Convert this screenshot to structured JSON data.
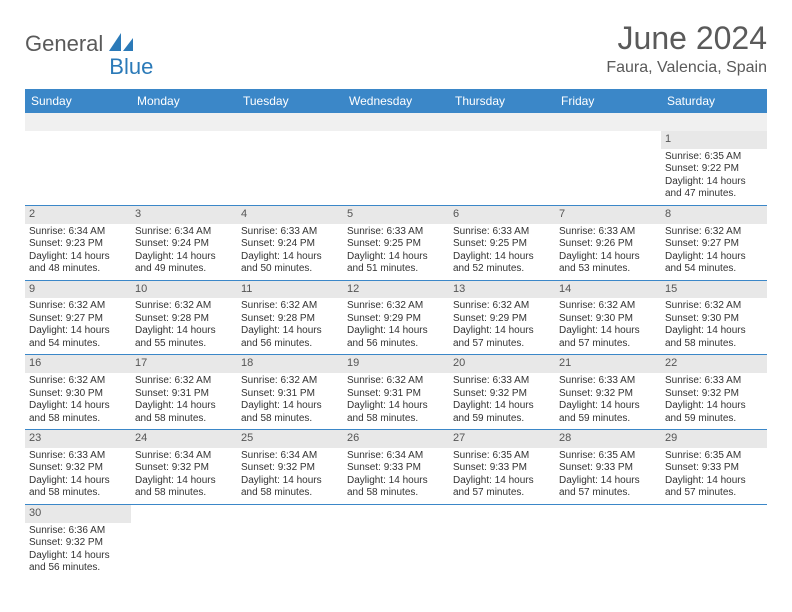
{
  "logo": {
    "text1": "General",
    "text2": "Blue"
  },
  "title": "June 2024",
  "location": "Faura, Valencia, Spain",
  "day_header_bg": "#3b87c8",
  "day_header_fg": "#ffffff",
  "row_separator_color": "#3b87c8",
  "day_number_bg": "#e8e8e8",
  "page_bg": "#ffffff",
  "text_color": "#333333",
  "day_names": [
    "Sunday",
    "Monday",
    "Tuesday",
    "Wednesday",
    "Thursday",
    "Friday",
    "Saturday"
  ],
  "weeks": [
    [
      null,
      null,
      null,
      null,
      null,
      null,
      {
        "n": "1",
        "sunrise": "6:35 AM",
        "sunset": "9:22 PM",
        "dl1": "14 hours",
        "dl2": "and 47 minutes."
      }
    ],
    [
      {
        "n": "2",
        "sunrise": "6:34 AM",
        "sunset": "9:23 PM",
        "dl1": "14 hours",
        "dl2": "and 48 minutes."
      },
      {
        "n": "3",
        "sunrise": "6:34 AM",
        "sunset": "9:24 PM",
        "dl1": "14 hours",
        "dl2": "and 49 minutes."
      },
      {
        "n": "4",
        "sunrise": "6:33 AM",
        "sunset": "9:24 PM",
        "dl1": "14 hours",
        "dl2": "and 50 minutes."
      },
      {
        "n": "5",
        "sunrise": "6:33 AM",
        "sunset": "9:25 PM",
        "dl1": "14 hours",
        "dl2": "and 51 minutes."
      },
      {
        "n": "6",
        "sunrise": "6:33 AM",
        "sunset": "9:25 PM",
        "dl1": "14 hours",
        "dl2": "and 52 minutes."
      },
      {
        "n": "7",
        "sunrise": "6:33 AM",
        "sunset": "9:26 PM",
        "dl1": "14 hours",
        "dl2": "and 53 minutes."
      },
      {
        "n": "8",
        "sunrise": "6:32 AM",
        "sunset": "9:27 PM",
        "dl1": "14 hours",
        "dl2": "and 54 minutes."
      }
    ],
    [
      {
        "n": "9",
        "sunrise": "6:32 AM",
        "sunset": "9:27 PM",
        "dl1": "14 hours",
        "dl2": "and 54 minutes."
      },
      {
        "n": "10",
        "sunrise": "6:32 AM",
        "sunset": "9:28 PM",
        "dl1": "14 hours",
        "dl2": "and 55 minutes."
      },
      {
        "n": "11",
        "sunrise": "6:32 AM",
        "sunset": "9:28 PM",
        "dl1": "14 hours",
        "dl2": "and 56 minutes."
      },
      {
        "n": "12",
        "sunrise": "6:32 AM",
        "sunset": "9:29 PM",
        "dl1": "14 hours",
        "dl2": "and 56 minutes."
      },
      {
        "n": "13",
        "sunrise": "6:32 AM",
        "sunset": "9:29 PM",
        "dl1": "14 hours",
        "dl2": "and 57 minutes."
      },
      {
        "n": "14",
        "sunrise": "6:32 AM",
        "sunset": "9:30 PM",
        "dl1": "14 hours",
        "dl2": "and 57 minutes."
      },
      {
        "n": "15",
        "sunrise": "6:32 AM",
        "sunset": "9:30 PM",
        "dl1": "14 hours",
        "dl2": "and 58 minutes."
      }
    ],
    [
      {
        "n": "16",
        "sunrise": "6:32 AM",
        "sunset": "9:30 PM",
        "dl1": "14 hours",
        "dl2": "and 58 minutes."
      },
      {
        "n": "17",
        "sunrise": "6:32 AM",
        "sunset": "9:31 PM",
        "dl1": "14 hours",
        "dl2": "and 58 minutes."
      },
      {
        "n": "18",
        "sunrise": "6:32 AM",
        "sunset": "9:31 PM",
        "dl1": "14 hours",
        "dl2": "and 58 minutes."
      },
      {
        "n": "19",
        "sunrise": "6:32 AM",
        "sunset": "9:31 PM",
        "dl1": "14 hours",
        "dl2": "and 58 minutes."
      },
      {
        "n": "20",
        "sunrise": "6:33 AM",
        "sunset": "9:32 PM",
        "dl1": "14 hours",
        "dl2": "and 59 minutes."
      },
      {
        "n": "21",
        "sunrise": "6:33 AM",
        "sunset": "9:32 PM",
        "dl1": "14 hours",
        "dl2": "and 59 minutes."
      },
      {
        "n": "22",
        "sunrise": "6:33 AM",
        "sunset": "9:32 PM",
        "dl1": "14 hours",
        "dl2": "and 59 minutes."
      }
    ],
    [
      {
        "n": "23",
        "sunrise": "6:33 AM",
        "sunset": "9:32 PM",
        "dl1": "14 hours",
        "dl2": "and 58 minutes."
      },
      {
        "n": "24",
        "sunrise": "6:34 AM",
        "sunset": "9:32 PM",
        "dl1": "14 hours",
        "dl2": "and 58 minutes."
      },
      {
        "n": "25",
        "sunrise": "6:34 AM",
        "sunset": "9:32 PM",
        "dl1": "14 hours",
        "dl2": "and 58 minutes."
      },
      {
        "n": "26",
        "sunrise": "6:34 AM",
        "sunset": "9:33 PM",
        "dl1": "14 hours",
        "dl2": "and 58 minutes."
      },
      {
        "n": "27",
        "sunrise": "6:35 AM",
        "sunset": "9:33 PM",
        "dl1": "14 hours",
        "dl2": "and 57 minutes."
      },
      {
        "n": "28",
        "sunrise": "6:35 AM",
        "sunset": "9:33 PM",
        "dl1": "14 hours",
        "dl2": "and 57 minutes."
      },
      {
        "n": "29",
        "sunrise": "6:35 AM",
        "sunset": "9:33 PM",
        "dl1": "14 hours",
        "dl2": "and 57 minutes."
      }
    ],
    [
      {
        "n": "30",
        "sunrise": "6:36 AM",
        "sunset": "9:32 PM",
        "dl1": "14 hours",
        "dl2": "and 56 minutes."
      },
      null,
      null,
      null,
      null,
      null,
      null
    ]
  ],
  "labels": {
    "sunrise_prefix": "Sunrise: ",
    "sunset_prefix": "Sunset: ",
    "daylight_prefix": "Daylight: "
  }
}
